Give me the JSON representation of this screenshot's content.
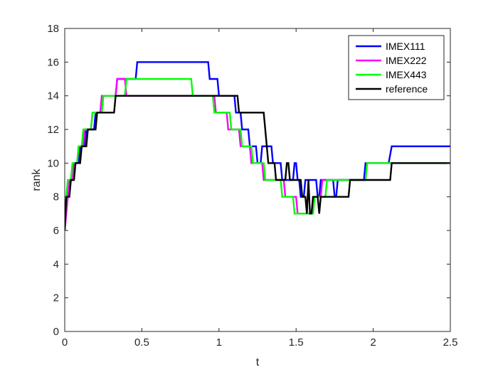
{
  "chart_data": {
    "type": "line",
    "title": "",
    "xlabel": "t",
    "ylabel": "rank",
    "xlim": [
      0,
      2.5
    ],
    "ylim": [
      0,
      18
    ],
    "xticks": [
      0,
      0.5,
      1,
      1.5,
      2,
      2.5
    ],
    "xtick_labels": [
      "0",
      "0.5",
      "1",
      "1.5",
      "2",
      "2.5"
    ],
    "yticks": [
      0,
      2,
      4,
      6,
      8,
      10,
      12,
      14,
      16,
      18
    ],
    "ytick_labels": [
      "0",
      "2",
      "4",
      "6",
      "8",
      "10",
      "12",
      "14",
      "16",
      "18"
    ],
    "grid": false,
    "legend_position": "top-right",
    "series": [
      {
        "name": "IMEX111",
        "color": "#0000ff",
        "points": [
          [
            0,
            6
          ],
          [
            0.01,
            8
          ],
          [
            0.02,
            8
          ],
          [
            0.03,
            9
          ],
          [
            0.05,
            9
          ],
          [
            0.06,
            10
          ],
          [
            0.09,
            10
          ],
          [
            0.1,
            11
          ],
          [
            0.13,
            11
          ],
          [
            0.14,
            12
          ],
          [
            0.19,
            12
          ],
          [
            0.2,
            13
          ],
          [
            0.24,
            13
          ],
          [
            0.25,
            14
          ],
          [
            0.33,
            14
          ],
          [
            0.34,
            15
          ],
          [
            0.46,
            15
          ],
          [
            0.47,
            16
          ],
          [
            0.93,
            16
          ],
          [
            0.94,
            15
          ],
          [
            0.99,
            15
          ],
          [
            1.0,
            14
          ],
          [
            1.1,
            14
          ],
          [
            1.11,
            13
          ],
          [
            1.14,
            13
          ],
          [
            1.15,
            12
          ],
          [
            1.19,
            12
          ],
          [
            1.2,
            11
          ],
          [
            1.24,
            11
          ],
          [
            1.25,
            10
          ],
          [
            1.27,
            10
          ],
          [
            1.28,
            11
          ],
          [
            1.34,
            11
          ],
          [
            1.35,
            10
          ],
          [
            1.4,
            10
          ],
          [
            1.41,
            9
          ],
          [
            1.48,
            9
          ],
          [
            1.49,
            10
          ],
          [
            1.5,
            10
          ],
          [
            1.51,
            9
          ],
          [
            1.52,
            9
          ],
          [
            1.53,
            8
          ],
          [
            1.55,
            8
          ],
          [
            1.56,
            9
          ],
          [
            1.63,
            9
          ],
          [
            1.64,
            8
          ],
          [
            1.65,
            8
          ],
          [
            1.66,
            9
          ],
          [
            1.74,
            9
          ],
          [
            1.75,
            8
          ],
          [
            1.76,
            8
          ],
          [
            1.77,
            9
          ],
          [
            1.94,
            9
          ],
          [
            1.95,
            10
          ],
          [
            2.1,
            10
          ],
          [
            2.12,
            11
          ],
          [
            2.5,
            11
          ]
        ]
      },
      {
        "name": "IMEX222",
        "color": "#ff00ff",
        "points": [
          [
            0,
            6
          ],
          [
            0.01,
            7
          ],
          [
            0.02,
            8
          ],
          [
            0.03,
            9
          ],
          [
            0.05,
            9
          ],
          [
            0.06,
            10
          ],
          [
            0.08,
            10
          ],
          [
            0.09,
            11
          ],
          [
            0.12,
            11
          ],
          [
            0.13,
            12
          ],
          [
            0.17,
            12
          ],
          [
            0.18,
            13
          ],
          [
            0.23,
            13
          ],
          [
            0.24,
            14
          ],
          [
            0.33,
            14
          ],
          [
            0.34,
            15
          ],
          [
            0.39,
            15
          ],
          [
            0.4,
            14
          ],
          [
            0.97,
            14
          ],
          [
            0.98,
            13
          ],
          [
            1.05,
            13
          ],
          [
            1.06,
            12
          ],
          [
            1.13,
            12
          ],
          [
            1.14,
            11
          ],
          [
            1.2,
            11
          ],
          [
            1.21,
            10
          ],
          [
            1.28,
            10
          ],
          [
            1.29,
            9
          ],
          [
            1.42,
            9
          ],
          [
            1.43,
            8
          ],
          [
            1.5,
            8
          ],
          [
            1.51,
            7
          ],
          [
            1.6,
            7
          ],
          [
            1.61,
            8
          ],
          [
            1.66,
            8
          ],
          [
            1.67,
            9
          ],
          [
            1.95,
            9
          ],
          [
            1.96,
            10
          ],
          [
            2.11,
            10
          ],
          [
            2.12,
            10
          ],
          [
            2.5,
            10
          ]
        ]
      },
      {
        "name": "IMEX443",
        "color": "#00ff00",
        "points": [
          [
            0,
            6
          ],
          [
            0.01,
            8
          ],
          [
            0.02,
            9
          ],
          [
            0.04,
            9
          ],
          [
            0.05,
            10
          ],
          [
            0.08,
            10
          ],
          [
            0.09,
            11
          ],
          [
            0.11,
            11
          ],
          [
            0.12,
            12
          ],
          [
            0.17,
            12
          ],
          [
            0.18,
            13
          ],
          [
            0.24,
            13
          ],
          [
            0.25,
            14
          ],
          [
            0.39,
            14
          ],
          [
            0.4,
            15
          ],
          [
            0.82,
            15
          ],
          [
            0.83,
            14
          ],
          [
            0.96,
            14
          ],
          [
            0.97,
            13
          ],
          [
            1.07,
            13
          ],
          [
            1.08,
            12
          ],
          [
            1.14,
            12
          ],
          [
            1.15,
            11
          ],
          [
            1.21,
            11
          ],
          [
            1.22,
            10
          ],
          [
            1.29,
            10
          ],
          [
            1.3,
            9
          ],
          [
            1.4,
            9
          ],
          [
            1.41,
            8
          ],
          [
            1.48,
            8
          ],
          [
            1.49,
            7
          ],
          [
            1.61,
            7
          ],
          [
            1.62,
            8
          ],
          [
            1.69,
            8
          ],
          [
            1.7,
            9
          ],
          [
            1.95,
            9
          ],
          [
            1.96,
            10
          ],
          [
            2.1,
            10
          ],
          [
            2.11,
            10
          ],
          [
            2.5,
            10
          ]
        ]
      },
      {
        "name": "reference",
        "color": "#000000",
        "points": [
          [
            0,
            6
          ],
          [
            0.01,
            8
          ],
          [
            0.03,
            8
          ],
          [
            0.04,
            9
          ],
          [
            0.06,
            9
          ],
          [
            0.07,
            10
          ],
          [
            0.1,
            10
          ],
          [
            0.11,
            11
          ],
          [
            0.14,
            11
          ],
          [
            0.15,
            12
          ],
          [
            0.2,
            12
          ],
          [
            0.21,
            13
          ],
          [
            0.32,
            13
          ],
          [
            0.33,
            14
          ],
          [
            1.12,
            14
          ],
          [
            1.13,
            13
          ],
          [
            1.29,
            13
          ],
          [
            1.3,
            12
          ],
          [
            1.31,
            11
          ],
          [
            1.32,
            10
          ],
          [
            1.36,
            10
          ],
          [
            1.37,
            9
          ],
          [
            1.43,
            9
          ],
          [
            1.44,
            10
          ],
          [
            1.45,
            10
          ],
          [
            1.46,
            9
          ],
          [
            1.53,
            9
          ],
          [
            1.54,
            8
          ],
          [
            1.56,
            8
          ],
          [
            1.57,
            7
          ],
          [
            1.58,
            9
          ],
          [
            1.59,
            7
          ],
          [
            1.6,
            7
          ],
          [
            1.61,
            8
          ],
          [
            1.64,
            8
          ],
          [
            1.65,
            7
          ],
          [
            1.66,
            8
          ],
          [
            1.84,
            8
          ],
          [
            1.85,
            9
          ],
          [
            2.11,
            9
          ],
          [
            2.12,
            10
          ],
          [
            2.5,
            10
          ]
        ]
      }
    ]
  }
}
